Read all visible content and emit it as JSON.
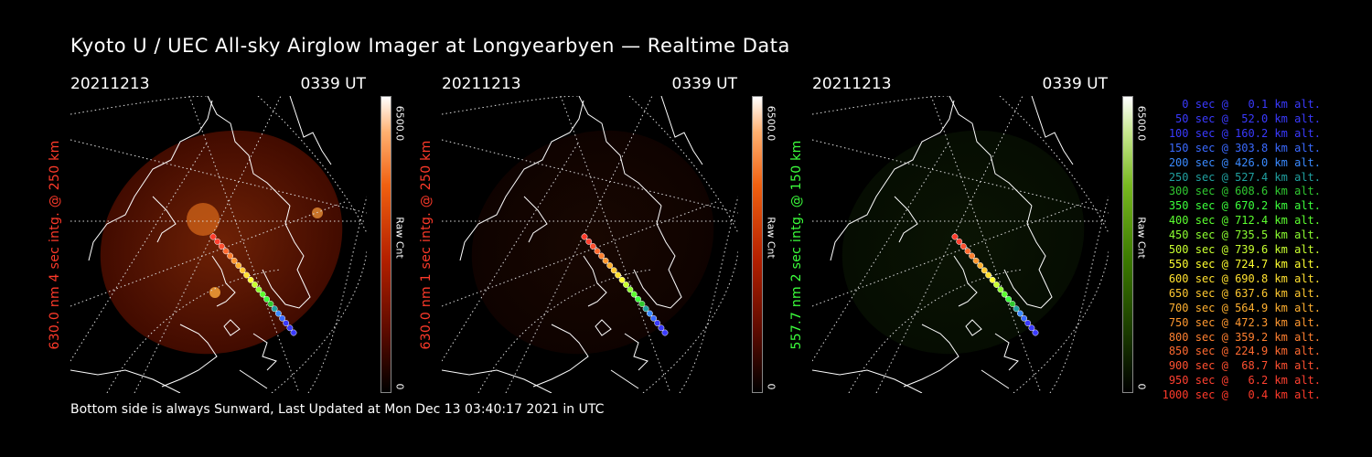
{
  "title": "Kyoto U / UEC All-sky Airglow Imager at Longyearbyen — Realtime Data",
  "footer": "Bottom side is always Sunward, Last Updated at Mon Dec 13 03:40:17 2021 in UTC",
  "panels": [
    {
      "date": "20211213",
      "time": "0339 UT",
      "ylabel": "630.0 nm 4 sec intg. @ 250 km",
      "label_color": "#ff3a2a",
      "cbar_max": "6500.0",
      "cbar_unit": "Raw Cnt",
      "cbar_min": "0",
      "colormap": "red",
      "glow_level": 0.55
    },
    {
      "date": "20211213",
      "time": "0339 UT",
      "ylabel": "630.0 nm 1 sec intg. @ 250 km",
      "label_color": "#ff3a2a",
      "cbar_max": "6500.0",
      "cbar_unit": "Raw Cnt",
      "cbar_min": "0",
      "colormap": "red",
      "glow_level": 0.12
    },
    {
      "date": "20211213",
      "time": "0339 UT",
      "ylabel": "557.7 nm 2 sec intg. @ 150 km",
      "label_color": "#3cff3c",
      "cbar_max": "6500.0",
      "cbar_unit": "Raw Cnt",
      "cbar_min": "0",
      "colormap": "green",
      "glow_level": 0.18
    }
  ],
  "legend": [
    {
      "text": "0 sec @   0.1 km alt.",
      "color": "#3a3aff"
    },
    {
      "text": "50 sec @  52.0 km alt.",
      "color": "#3a3aff"
    },
    {
      "text": "100 sec @ 160.2 km alt.",
      "color": "#3a3aff"
    },
    {
      "text": "150 sec @ 303.8 km alt.",
      "color": "#3a6aff"
    },
    {
      "text": "200 sec @ 426.0 km alt.",
      "color": "#3a8aff"
    },
    {
      "text": "250 sec @ 527.4 km alt.",
      "color": "#20a0a0"
    },
    {
      "text": "300 sec @ 608.6 km alt.",
      "color": "#30c830"
    },
    {
      "text": "350 sec @ 670.2 km alt.",
      "color": "#3cff3c"
    },
    {
      "text": "400 sec @ 712.4 km alt.",
      "color": "#5cff30"
    },
    {
      "text": "450 sec @ 735.5 km alt.",
      "color": "#8cff30"
    },
    {
      "text": "500 sec @ 739.6 km alt.",
      "color": "#c8ff30"
    },
    {
      "text": "550 sec @ 724.7 km alt.",
      "color": "#ffff30"
    },
    {
      "text": "600 sec @ 690.8 km alt.",
      "color": "#ffe030"
    },
    {
      "text": "650 sec @ 637.6 km alt.",
      "color": "#ffc830"
    },
    {
      "text": "700 sec @ 564.9 km alt.",
      "color": "#ffb030"
    },
    {
      "text": "750 sec @ 472.3 km alt.",
      "color": "#ff9830"
    },
    {
      "text": "800 sec @ 359.2 km alt.",
      "color": "#ff8030"
    },
    {
      "text": "850 sec @ 224.9 km alt.",
      "color": "#ff6a30"
    },
    {
      "text": "900 sec @  68.7 km alt.",
      "color": "#ff5030"
    },
    {
      "text": "950 sec @   6.2 km alt.",
      "color": "#ff4030"
    },
    {
      "text": "1000 sec @   0.4 km alt.",
      "color": "#ff3a2a"
    }
  ]
}
